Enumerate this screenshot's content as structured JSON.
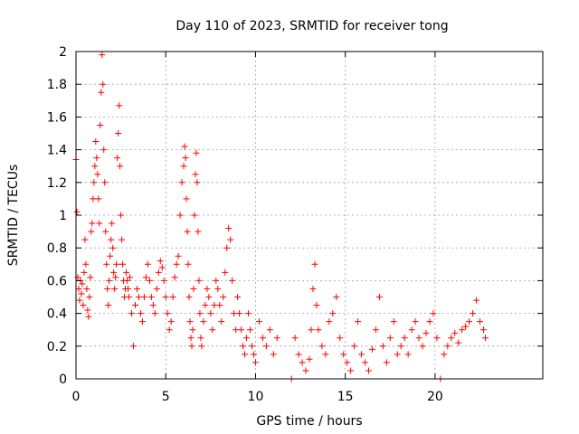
{
  "chart_data": {
    "type": "scatter",
    "title": "Day 110 of 2023, SRMTID for receiver tong",
    "xlabel": "GPS time / hours",
    "ylabel": "SRMTID / TECUs",
    "xlim": [
      0,
      26
    ],
    "ylim": [
      0,
      2
    ],
    "xticks": [
      0,
      5,
      10,
      15,
      20
    ],
    "xtick_labels": [
      "0",
      "5",
      "10",
      "15",
      "20"
    ],
    "yticks": [
      0,
      0.2,
      0.4,
      0.6,
      0.8,
      1,
      1.2,
      1.4,
      1.6,
      1.8,
      2
    ],
    "ytick_labels": [
      "0",
      "0.2",
      "0.4",
      "0.6",
      "0.8",
      "1",
      "1.2",
      "1.4",
      "1.6",
      "1.8",
      "2"
    ],
    "grid": true,
    "marker": "+",
    "marker_color": "#ff0000",
    "series": [
      {
        "name": "SRMTID",
        "x": [
          0.0,
          0.05,
          0.1,
          0.15,
          0.2,
          0.25,
          0.3,
          0.35,
          0.4,
          0.45,
          0.5,
          0.55,
          0.6,
          0.65,
          0.7,
          0.75,
          0.8,
          0.85,
          0.9,
          0.95,
          1.0,
          1.05,
          1.1,
          1.15,
          1.2,
          1.25,
          1.3,
          1.35,
          1.4,
          1.45,
          1.5,
          1.55,
          1.6,
          1.65,
          1.7,
          1.75,
          1.8,
          1.85,
          1.9,
          1.95,
          2.0,
          2.05,
          2.1,
          2.15,
          2.2,
          2.25,
          2.3,
          2.35,
          2.4,
          2.45,
          2.5,
          2.55,
          2.6,
          2.65,
          2.7,
          2.75,
          2.8,
          2.85,
          2.9,
          2.95,
          3.0,
          3.1,
          3.2,
          3.3,
          3.4,
          3.5,
          3.6,
          3.7,
          3.8,
          3.9,
          4.0,
          4.1,
          4.2,
          4.3,
          4.4,
          4.5,
          4.6,
          4.7,
          4.8,
          4.9,
          5.0,
          5.1,
          5.2,
          5.3,
          5.4,
          5.5,
          5.6,
          5.7,
          5.8,
          5.9,
          6.0,
          6.05,
          6.1,
          6.15,
          6.2,
          6.25,
          6.3,
          6.35,
          6.4,
          6.45,
          6.5,
          6.55,
          6.6,
          6.65,
          6.7,
          6.75,
          6.8,
          6.85,
          6.9,
          6.95,
          7.0,
          7.1,
          7.2,
          7.3,
          7.4,
          7.5,
          7.6,
          7.7,
          7.8,
          7.9,
          8.0,
          8.1,
          8.2,
          8.3,
          8.4,
          8.5,
          8.6,
          8.7,
          8.8,
          8.9,
          9.0,
          9.1,
          9.2,
          9.3,
          9.4,
          9.5,
          9.6,
          9.7,
          9.8,
          9.9,
          10.0,
          10.2,
          10.4,
          10.6,
          10.8,
          11.0,
          11.2,
          12.0,
          12.2,
          12.4,
          12.6,
          12.8,
          13.0,
          13.1,
          13.2,
          13.3,
          13.4,
          13.5,
          13.7,
          13.9,
          14.1,
          14.3,
          14.5,
          14.7,
          14.9,
          15.1,
          15.3,
          15.5,
          15.7,
          15.9,
          16.1,
          16.3,
          16.5,
          16.7,
          16.9,
          17.1,
          17.3,
          17.5,
          17.7,
          17.9,
          18.1,
          18.3,
          18.5,
          18.7,
          18.9,
          19.1,
          19.3,
          19.5,
          19.7,
          19.9,
          20.1,
          20.3,
          20.5,
          20.7,
          20.9,
          21.1,
          21.3,
          21.5,
          21.7,
          21.9,
          22.1,
          22.3,
          22.5,
          22.7,
          22.8
        ],
        "y": [
          1.34,
          1.02,
          0.62,
          0.55,
          0.48,
          0.6,
          0.52,
          0.58,
          0.45,
          0.65,
          0.85,
          0.7,
          0.55,
          0.42,
          0.38,
          0.5,
          0.62,
          0.9,
          0.95,
          1.1,
          1.2,
          1.3,
          1.45,
          1.35,
          1.25,
          1.1,
          0.95,
          1.55,
          1.75,
          1.98,
          1.8,
          1.4,
          1.2,
          0.9,
          0.7,
          0.55,
          0.45,
          0.6,
          0.75,
          0.85,
          0.95,
          0.8,
          0.65,
          0.55,
          0.62,
          0.7,
          1.35,
          1.5,
          1.67,
          1.3,
          1.0,
          0.85,
          0.7,
          0.6,
          0.5,
          0.55,
          0.65,
          0.6,
          0.55,
          0.5,
          0.62,
          0.4,
          0.2,
          0.45,
          0.55,
          0.5,
          0.4,
          0.35,
          0.5,
          0.62,
          0.7,
          0.6,
          0.5,
          0.45,
          0.4,
          0.55,
          0.65,
          0.72,
          0.68,
          0.6,
          0.5,
          0.4,
          0.3,
          0.35,
          0.5,
          0.62,
          0.7,
          0.75,
          1.0,
          1.2,
          1.3,
          1.42,
          1.35,
          1.1,
          0.9,
          0.7,
          0.5,
          0.35,
          0.25,
          0.2,
          0.3,
          0.55,
          1.0,
          1.25,
          1.38,
          1.2,
          0.9,
          0.6,
          0.4,
          0.25,
          0.2,
          0.35,
          0.45,
          0.55,
          0.5,
          0.4,
          0.3,
          0.45,
          0.6,
          0.55,
          0.45,
          0.35,
          0.5,
          0.65,
          0.8,
          0.92,
          0.85,
          0.6,
          0.4,
          0.3,
          0.5,
          0.4,
          0.3,
          0.2,
          0.15,
          0.25,
          0.4,
          0.3,
          0.2,
          0.15,
          0.1,
          0.35,
          0.25,
          0.2,
          0.3,
          0.15,
          0.25,
          0.0,
          0.25,
          0.15,
          0.1,
          0.05,
          0.12,
          0.3,
          0.55,
          0.7,
          0.45,
          0.3,
          0.2,
          0.15,
          0.35,
          0.4,
          0.5,
          0.25,
          0.15,
          0.1,
          0.05,
          0.2,
          0.35,
          0.15,
          0.1,
          0.05,
          0.18,
          0.3,
          0.5,
          0.2,
          0.1,
          0.25,
          0.35,
          0.15,
          0.2,
          0.25,
          0.15,
          0.3,
          0.35,
          0.25,
          0.2,
          0.28,
          0.35,
          0.4,
          0.25,
          0.0,
          0.15,
          0.2,
          0.25,
          0.28,
          0.22,
          0.3,
          0.32,
          0.35,
          0.4,
          0.48,
          0.35,
          0.3,
          0.25
        ]
      }
    ]
  }
}
